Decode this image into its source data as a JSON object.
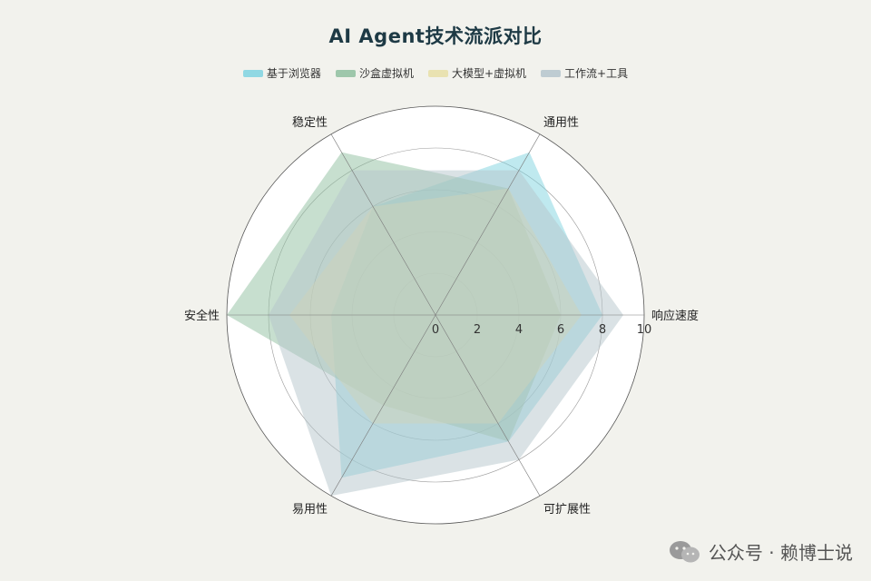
{
  "chart_data": {
    "type": "radar",
    "title": "AI Agent技术流派对比",
    "axes": [
      "响应速度",
      "通用性",
      "稳定性",
      "安全性",
      "易用性",
      "可扩展性"
    ],
    "range": [
      0,
      10
    ],
    "tick_labels": [
      "0",
      "2",
      "4",
      "6",
      "8",
      "10"
    ],
    "legend_placement": "top-center",
    "series": [
      {
        "name": "基于浏览器",
        "color": "#7fd3e0",
        "values": [
          8,
          9,
          6,
          5,
          9,
          7
        ]
      },
      {
        "name": "沙盒虚拟机",
        "color": "#8fbf9f",
        "values": [
          6,
          7,
          9,
          10,
          5,
          7
        ]
      },
      {
        "name": "大模型+虚拟机",
        "color": "#e8dfa6",
        "values": [
          7,
          7,
          6,
          7,
          6,
          6
        ]
      },
      {
        "name": "工作流+工具",
        "color": "#b5c6cc",
        "values": [
          9,
          8,
          8,
          8,
          10,
          8
        ]
      }
    ]
  },
  "watermark": {
    "icon": "wechat-icon",
    "text": "公众号 · 赖博士说"
  }
}
